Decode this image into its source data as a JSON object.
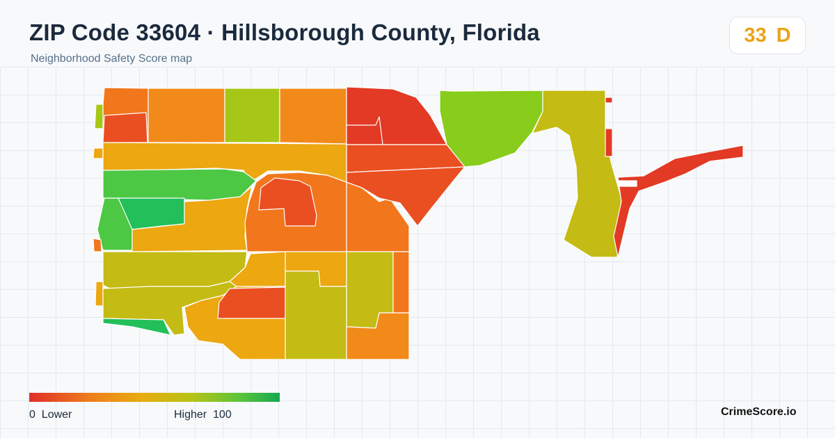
{
  "header": {
    "title": "ZIP Code 33604 · Hillsborough County, Florida",
    "subtitle": "Neighborhood Safety Score map"
  },
  "score": {
    "value": "33",
    "grade": "D",
    "color": "#e9a316"
  },
  "legend": {
    "low_value": "0",
    "low_label": "Lower",
    "high_label": "Higher",
    "high_value": "100",
    "gradient": [
      "#e02f2a",
      "#ee7f1a",
      "#e8ac10",
      "#b6c317",
      "#56c43c",
      "#14a851"
    ]
  },
  "brand": {
    "name": "CrimeScore.io"
  },
  "palette": {
    "red": "#e23a25",
    "red_orange": "#ea4f22",
    "orange": "#f1761c",
    "orange_light": "#f28a1a",
    "amber": "#eca711",
    "yellow_green": "#c4bb14",
    "lime": "#a6c718",
    "bright_green": "#88cc1c",
    "green": "#4cc844",
    "deep_green": "#22bf5a"
  }
}
